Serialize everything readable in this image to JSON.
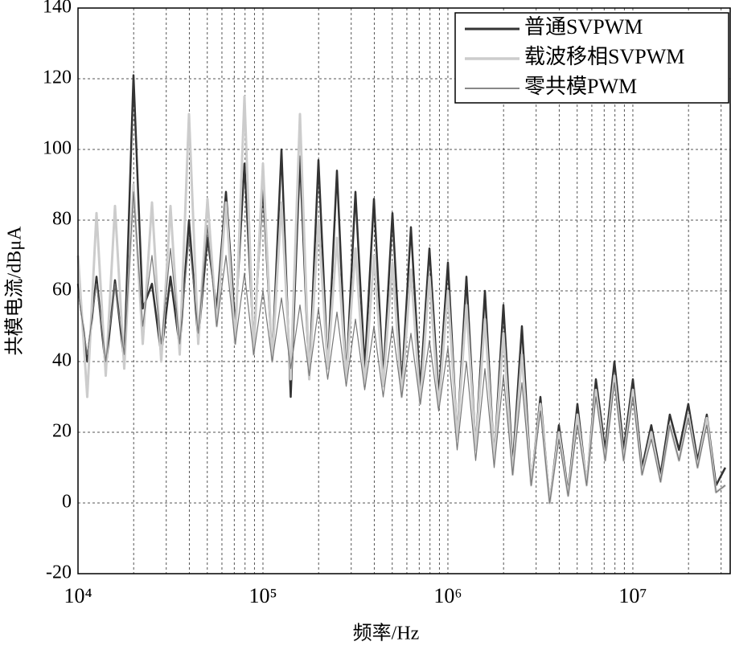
{
  "chart_data": {
    "type": "line",
    "xlabel": "频率/Hz",
    "ylabel": "共模电流/dBμA",
    "xscale": "log",
    "grid": true,
    "legend": "upper right",
    "xlim": [
      10000,
      33600000
    ],
    "ylim": [
      -20,
      140
    ],
    "xticks": [
      {
        "value": 10000,
        "label": "10⁴"
      },
      {
        "value": 100000,
        "label": "10⁵"
      },
      {
        "value": 1000000,
        "label": "10⁶"
      },
      {
        "value": 10000000,
        "label": "10⁷"
      }
    ],
    "xminorticks": [
      20000,
      30000,
      40000,
      50000,
      60000,
      70000,
      80000,
      90000,
      200000,
      300000,
      400000,
      500000,
      600000,
      700000,
      800000,
      900000,
      2000000,
      3000000,
      4000000,
      5000000,
      6000000,
      7000000,
      8000000,
      9000000,
      20000000,
      30000000
    ],
    "yticks": [
      -20,
      0,
      20,
      40,
      60,
      80,
      100,
      120,
      140
    ],
    "x": [
      10000,
      11220,
      12589,
      14125,
      15849,
      17783,
      19953,
      22387,
      25119,
      28184,
      31623,
      35481,
      39811,
      44668,
      50119,
      56234,
      63096,
      70795,
      79433,
      89125,
      100000,
      112202,
      125893,
      141254,
      158489,
      177828,
      199526,
      223872,
      251189,
      281838,
      316228,
      354813,
      398107,
      446684,
      501187,
      562341,
      630957,
      707946,
      794328,
      891251,
      1000000,
      1122018,
      1258925,
      1412538,
      1584893,
      1778279,
      1995262,
      2238721,
      2511886,
      2818383,
      3162278,
      3548134,
      3981072,
      4466836,
      5011872,
      5623413,
      6309573,
      7079458,
      7943282,
      8912509,
      10000000,
      11220185,
      12589254,
      14125375,
      15848932,
      17782794,
      19952623,
      22387211,
      25118864,
      28183829,
      31622777
    ],
    "series": [
      {
        "name": "普通SVPWM",
        "color": "#333333",
        "width": 2.5,
        "values": [
          62,
          40,
          64,
          38,
          63,
          40,
          121,
          55,
          62,
          42,
          64,
          44,
          80,
          46,
          75,
          55,
          88,
          50,
          96,
          45,
          90,
          40,
          100,
          30,
          98,
          35,
          97,
          38,
          94,
          35,
          88,
          38,
          86,
          35,
          82,
          33,
          78,
          32,
          72,
          30,
          68,
          18,
          64,
          15,
          60,
          12,
          56,
          10,
          50,
          5,
          30,
          0,
          22,
          3,
          28,
          5,
          35,
          15,
          40,
          15,
          35,
          10,
          22,
          8,
          25,
          15,
          28,
          12,
          25,
          5,
          10
        ]
      },
      {
        "name": "载波移相SVPWM",
        "color": "#cccccc",
        "width": 3,
        "values": [
          70,
          30,
          82,
          36,
          84,
          38,
          90,
          45,
          85,
          40,
          84,
          42,
          110,
          45,
          86,
          50,
          85,
          45,
          115,
          42,
          96,
          40,
          85,
          35,
          110,
          35,
          80,
          38,
          75,
          35,
          72,
          33,
          70,
          33,
          68,
          30,
          66,
          28,
          64,
          27,
          60,
          18,
          56,
          15,
          52,
          12,
          48,
          8,
          42,
          5,
          28,
          0,
          20,
          2,
          25,
          5,
          32,
          12,
          36,
          12,
          32,
          8,
          20,
          6,
          22,
          12,
          25,
          10,
          24,
          3,
          5
        ]
      },
      {
        "name": "零共模PWM",
        "color": "#777777",
        "width": 1.2,
        "values": [
          60,
          42,
          62,
          40,
          62,
          42,
          88,
          50,
          70,
          45,
          72,
          45,
          75,
          48,
          78,
          50,
          70,
          45,
          65,
          42,
          60,
          40,
          58,
          38,
          56,
          36,
          55,
          35,
          54,
          33,
          52,
          32,
          50,
          30,
          50,
          30,
          48,
          28,
          46,
          26,
          44,
          15,
          40,
          12,
          38,
          10,
          36,
          8,
          34,
          5,
          26,
          0,
          18,
          2,
          22,
          5,
          30,
          12,
          34,
          12,
          30,
          8,
          18,
          6,
          22,
          12,
          24,
          10,
          22,
          3,
          5
        ]
      }
    ]
  }
}
